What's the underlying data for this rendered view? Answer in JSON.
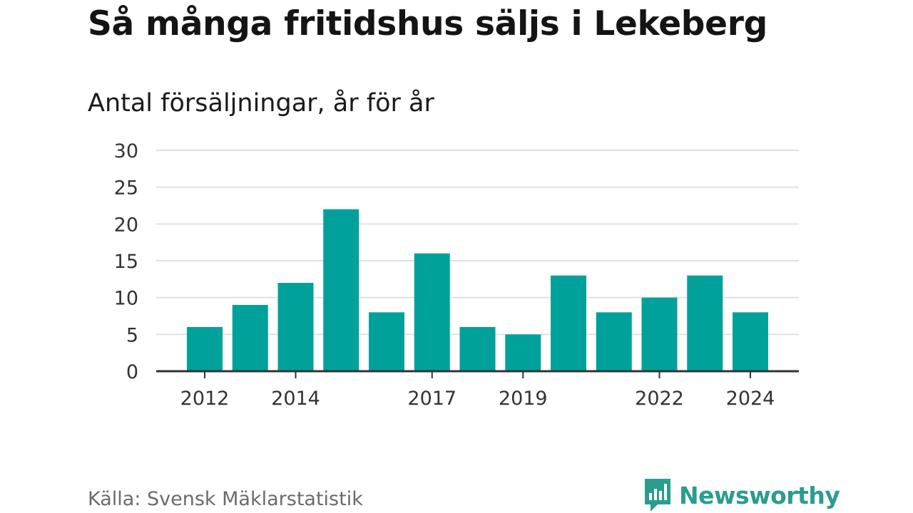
{
  "title": "Så många fritidshus säljs i Lekeberg",
  "subtitle": "Antal försäljningar, år för år",
  "source": "Källa: Svensk Mäklarstatistik",
  "brand": {
    "name": "Newsworthy",
    "color": "#2a9d8f",
    "icon": "chart-speech-bubble-icon"
  },
  "colors": {
    "bar": "#00a19a",
    "grid": "#e0e0e0",
    "axis": "#333333"
  },
  "chart_data": {
    "type": "bar",
    "x": [
      2012,
      2013,
      2014,
      2015,
      2016,
      2017,
      2018,
      2019,
      2020,
      2021,
      2022,
      2023,
      2024
    ],
    "values": [
      6,
      9,
      12,
      22,
      8,
      16,
      6,
      5,
      13,
      8,
      10,
      13,
      8
    ],
    "xtick_labels": [
      "2012",
      "2014",
      "2017",
      "2019",
      "2022",
      "2024"
    ],
    "yticks": [
      0,
      5,
      10,
      15,
      20,
      25,
      30
    ],
    "ylim": [
      0,
      30
    ],
    "grid": true
  }
}
